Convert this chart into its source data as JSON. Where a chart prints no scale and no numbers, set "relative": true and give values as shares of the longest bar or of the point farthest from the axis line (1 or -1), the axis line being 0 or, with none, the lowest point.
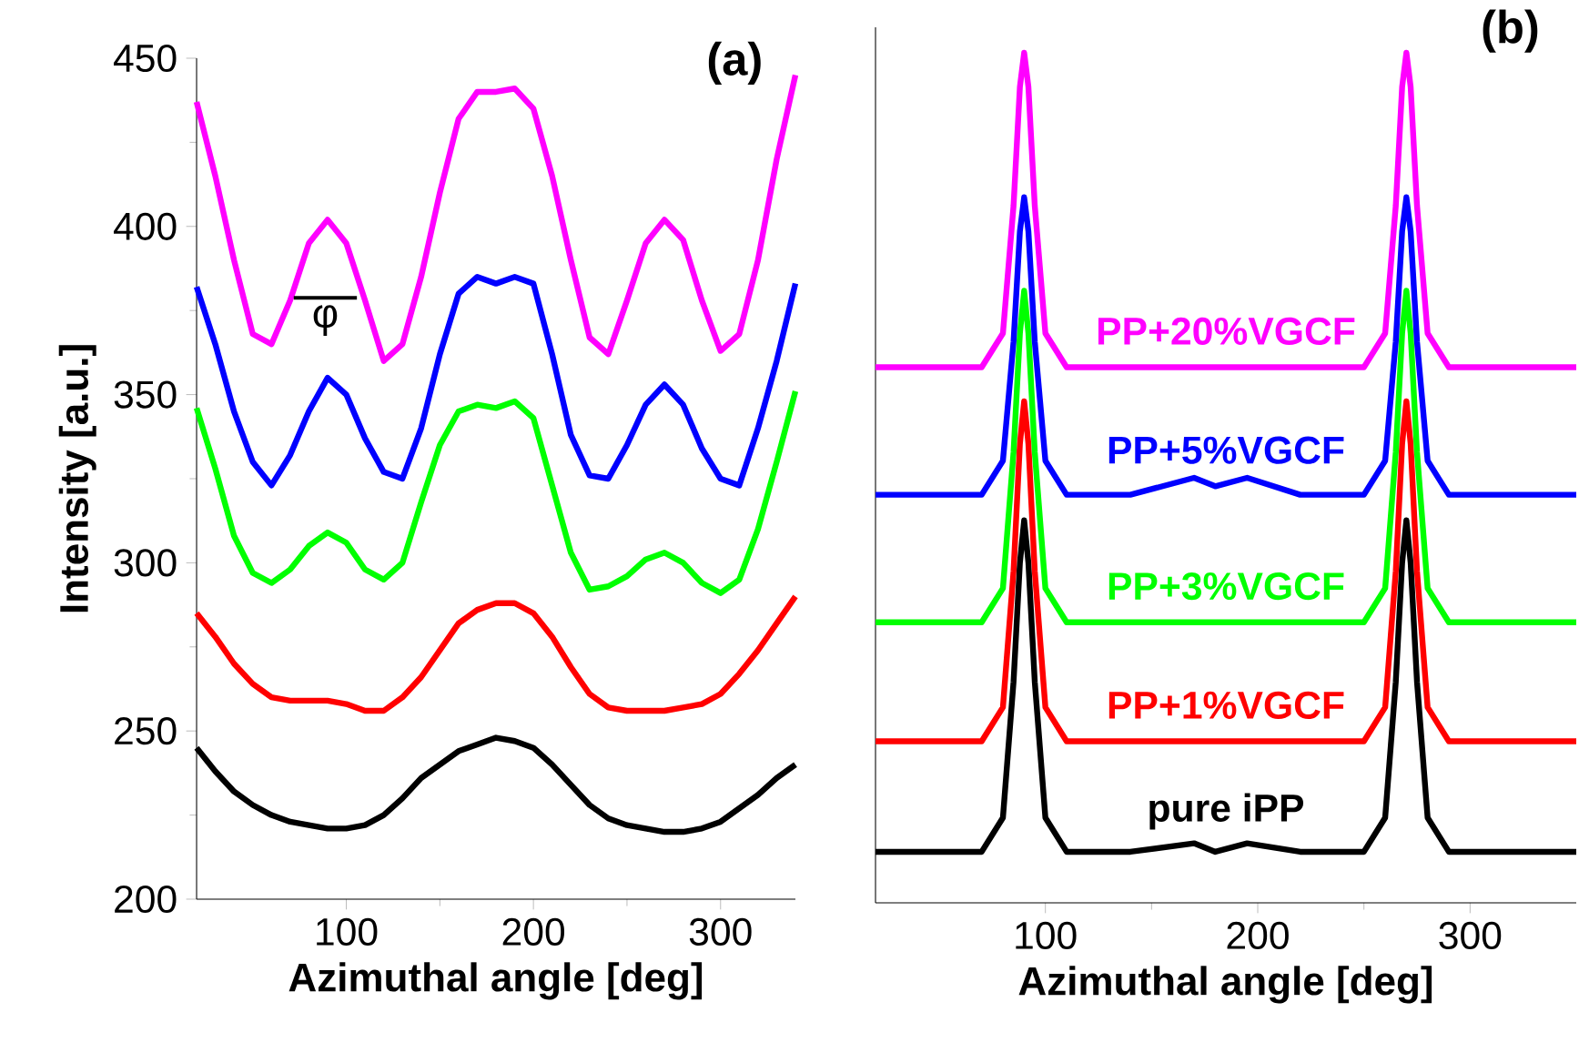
{
  "chart_data": [
    {
      "type": "line",
      "title": "(a)",
      "xlabel": "Azimuthal angle [deg]",
      "ylabel": "Intensity [a.u.]",
      "xlim": [
        20,
        340
      ],
      "ylim": [
        200,
        450
      ],
      "xticks": [
        100,
        200,
        300
      ],
      "yticks": [
        200,
        250,
        300,
        350,
        400,
        450
      ],
      "x": [
        20,
        30,
        40,
        50,
        60,
        70,
        80,
        90,
        100,
        110,
        120,
        130,
        140,
        150,
        160,
        170,
        180,
        190,
        200,
        210,
        220,
        230,
        240,
        250,
        260,
        270,
        280,
        290,
        300,
        310,
        320,
        330,
        340
      ],
      "annotations": [
        "φ"
      ],
      "series": [
        {
          "color": "#000000",
          "values": [
            245,
            238,
            232,
            228,
            225,
            223,
            222,
            221,
            221,
            222,
            225,
            230,
            236,
            240,
            244,
            246,
            248,
            247,
            245,
            240,
            234,
            228,
            224,
            222,
            221,
            220,
            220,
            221,
            223,
            227,
            231,
            236,
            240
          ]
        },
        {
          "color": "#ff0000",
          "values": [
            285,
            278,
            270,
            264,
            260,
            259,
            259,
            259,
            258,
            256,
            256,
            260,
            266,
            274,
            282,
            286,
            288,
            288,
            285,
            278,
            269,
            261,
            257,
            256,
            256,
            256,
            257,
            258,
            261,
            267,
            274,
            282,
            290
          ]
        },
        {
          "color": "#00ff00",
          "values": [
            346,
            328,
            308,
            297,
            294,
            298,
            305,
            309,
            306,
            298,
            295,
            300,
            318,
            335,
            345,
            347,
            346,
            348,
            343,
            323,
            303,
            292,
            293,
            296,
            301,
            303,
            300,
            294,
            291,
            295,
            310,
            330,
            351
          ]
        },
        {
          "color": "#0000ff",
          "values": [
            382,
            365,
            345,
            330,
            323,
            332,
            345,
            355,
            350,
            337,
            327,
            325,
            340,
            362,
            380,
            385,
            383,
            385,
            383,
            362,
            338,
            326,
            325,
            335,
            347,
            353,
            347,
            334,
            325,
            323,
            340,
            360,
            383
          ]
        },
        {
          "color": "#ff00ff",
          "values": [
            437,
            415,
            390,
            368,
            365,
            378,
            395,
            402,
            395,
            378,
            360,
            365,
            385,
            410,
            432,
            440,
            440,
            441,
            435,
            415,
            390,
            367,
            362,
            378,
            395,
            402,
            396,
            378,
            363,
            368,
            390,
            420,
            445
          ]
        }
      ]
    },
    {
      "type": "line",
      "title": "(b)",
      "xlabel": "Azimuthal angle [deg]",
      "xlim": [
        20,
        350
      ],
      "xticks": [
        100,
        200,
        300
      ],
      "relative": true,
      "tick_labels": "x",
      "x": [
        20,
        50,
        70,
        80,
        85,
        88,
        90,
        92,
        95,
        100,
        110,
        140,
        170,
        180,
        195,
        220,
        250,
        260,
        265,
        268,
        270,
        272,
        275,
        280,
        290,
        320,
        350
      ],
      "series": [
        {
          "name": "pure iPP",
          "color": "#000000",
          "values": [
            0.06,
            0.06,
            0.06,
            0.1,
            0.26,
            0.4,
            0.45,
            0.4,
            0.26,
            0.1,
            0.06,
            0.06,
            0.07,
            0.06,
            0.07,
            0.06,
            0.06,
            0.1,
            0.26,
            0.4,
            0.45,
            0.4,
            0.26,
            0.1,
            0.06,
            0.06,
            0.06
          ]
        },
        {
          "name": "PP+1%VGCF",
          "color": "#ff0000",
          "values": [
            0.19,
            0.19,
            0.19,
            0.23,
            0.39,
            0.54,
            0.59,
            0.54,
            0.39,
            0.23,
            0.19,
            0.19,
            0.19,
            0.19,
            0.19,
            0.19,
            0.19,
            0.23,
            0.39,
            0.54,
            0.59,
            0.54,
            0.39,
            0.23,
            0.19,
            0.19,
            0.19
          ]
        },
        {
          "name": "PP+3%VGCF",
          "color": "#00ff00",
          "values": [
            0.33,
            0.33,
            0.33,
            0.37,
            0.53,
            0.67,
            0.72,
            0.67,
            0.53,
            0.37,
            0.33,
            0.33,
            0.33,
            0.33,
            0.33,
            0.33,
            0.33,
            0.37,
            0.53,
            0.67,
            0.72,
            0.67,
            0.53,
            0.37,
            0.33,
            0.33,
            0.33
          ]
        },
        {
          "name": "PP+5%VGCF",
          "color": "#0000ff",
          "values": [
            0.48,
            0.48,
            0.48,
            0.52,
            0.66,
            0.79,
            0.83,
            0.79,
            0.66,
            0.52,
            0.48,
            0.48,
            0.5,
            0.49,
            0.5,
            0.48,
            0.48,
            0.52,
            0.66,
            0.79,
            0.83,
            0.79,
            0.66,
            0.52,
            0.48,
            0.48,
            0.48
          ]
        },
        {
          "name": "PP+20%VGCF",
          "color": "#ff00ff",
          "values": [
            0.63,
            0.63,
            0.63,
            0.67,
            0.82,
            0.96,
            1.0,
            0.96,
            0.82,
            0.67,
            0.63,
            0.63,
            0.63,
            0.63,
            0.63,
            0.63,
            0.63,
            0.67,
            0.82,
            0.96,
            1.0,
            0.96,
            0.82,
            0.67,
            0.63,
            0.63,
            0.63
          ]
        }
      ]
    }
  ]
}
